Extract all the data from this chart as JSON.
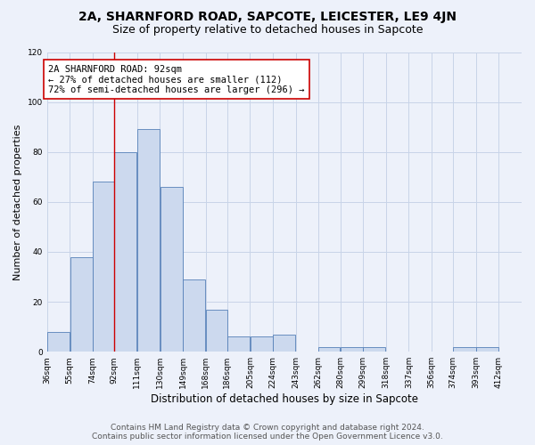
{
  "title1": "2A, SHARNFORD ROAD, SAPCOTE, LEICESTER, LE9 4JN",
  "title2": "Size of property relative to detached houses in Sapcote",
  "xlabel": "Distribution of detached houses by size in Sapcote",
  "ylabel": "Number of detached properties",
  "bar_edges": [
    36,
    55,
    74,
    92,
    111,
    130,
    149,
    168,
    186,
    205,
    224,
    243,
    262,
    280,
    299,
    318,
    337,
    356,
    374,
    393,
    412
  ],
  "bar_heights": [
    8,
    38,
    68,
    80,
    89,
    66,
    29,
    17,
    6,
    6,
    7,
    0,
    2,
    2,
    2,
    0,
    0,
    0,
    2,
    2,
    0
  ],
  "bar_color": "#ccd9ee",
  "bar_edge_color": "#5580b8",
  "grid_color": "#c8d4e8",
  "background_color": "#edf1fa",
  "vline_x": 92,
  "vline_color": "#cc0000",
  "annotation_text": "2A SHARNFORD ROAD: 92sqm\n← 27% of detached houses are smaller (112)\n72% of semi-detached houses are larger (296) →",
  "annotation_box_color": "#ffffff",
  "annotation_box_edge": "#cc0000",
  "ylim": [
    0,
    120
  ],
  "yticks": [
    0,
    20,
    40,
    60,
    80,
    100,
    120
  ],
  "tick_labels": [
    "36sqm",
    "55sqm",
    "74sqm",
    "92sqm",
    "111sqm",
    "130sqm",
    "149sqm",
    "168sqm",
    "186sqm",
    "205sqm",
    "224sqm",
    "243sqm",
    "262sqm",
    "280sqm",
    "299sqm",
    "318sqm",
    "337sqm",
    "356sqm",
    "374sqm",
    "393sqm",
    "412sqm"
  ],
  "footer1": "Contains HM Land Registry data © Crown copyright and database right 2024.",
  "footer2": "Contains public sector information licensed under the Open Government Licence v3.0.",
  "title1_fontsize": 10,
  "title2_fontsize": 9,
  "xlabel_fontsize": 8.5,
  "ylabel_fontsize": 8,
  "tick_fontsize": 6.5,
  "annotation_fontsize": 7.5,
  "footer_fontsize": 6.5
}
